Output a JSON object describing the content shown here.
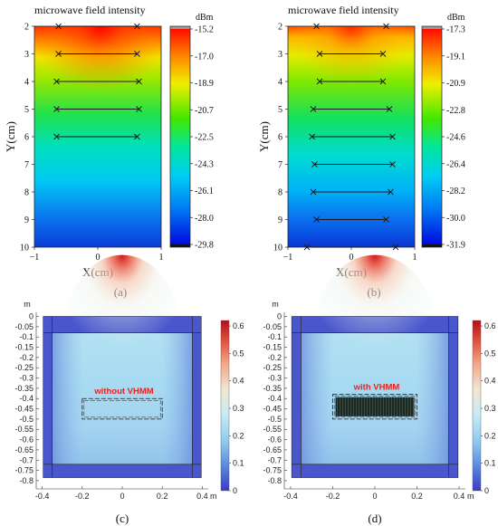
{
  "chart_data": [
    {
      "panel": "a",
      "type": "heatmap",
      "title": "microwave field intensity",
      "xlabel": "X(cm)",
      "ylabel": "Y(cm)",
      "caption": "(a)",
      "xlim": [
        -1,
        1
      ],
      "ylim": [
        2,
        10
      ],
      "x_ticks": [
        "−1",
        "0",
        "1"
      ],
      "y_ticks": [
        "2",
        "3",
        "4",
        "5",
        "6",
        "7",
        "8",
        "9",
        "10"
      ],
      "colorbar": {
        "unit": "dBm",
        "range": [
          -29.8,
          -15.2
        ],
        "ticks": [
          "-15.2",
          "-17.0",
          "-18.9",
          "-20.7",
          "-22.5",
          "-24.3",
          "-26.1",
          "-28.0",
          "-29.8"
        ]
      },
      "measurement_lines": [
        {
          "y": 2,
          "x": [
            -0.62,
            0.62
          ]
        },
        {
          "y": 3,
          "x": [
            -0.62,
            0.62
          ]
        },
        {
          "y": 4,
          "x": [
            -0.65,
            0.65
          ]
        },
        {
          "y": 5,
          "x": [
            -0.65,
            0.65
          ]
        },
        {
          "y": 6,
          "x": [
            -0.65,
            0.62
          ]
        }
      ]
    },
    {
      "panel": "b",
      "type": "heatmap",
      "title": "microwave field intensity",
      "xlabel": "X(cm)",
      "ylabel": "Y(cm)",
      "caption": "(b)",
      "xlim": [
        -1,
        1
      ],
      "ylim": [
        2,
        10
      ],
      "x_ticks": [
        "−1",
        "0",
        "1"
      ],
      "y_ticks": [
        "2",
        "3",
        "4",
        "5",
        "6",
        "7",
        "8",
        "9",
        "10"
      ],
      "colorbar": {
        "unit": "dBm",
        "range": [
          -31.9,
          -17.3
        ],
        "ticks": [
          "-17.3",
          "-19.1",
          "-20.9",
          "-22.8",
          "-24.6",
          "-26.4",
          "-28.2",
          "-30.0",
          "-31.9"
        ]
      },
      "measurement_lines": [
        {
          "y": 2,
          "x": [
            -0.55,
            0.55
          ]
        },
        {
          "y": 3,
          "x": [
            -0.5,
            0.5
          ]
        },
        {
          "y": 4,
          "x": [
            -0.5,
            0.5
          ]
        },
        {
          "y": 5,
          "x": [
            -0.6,
            0.6
          ]
        },
        {
          "y": 6,
          "x": [
            -0.62,
            0.65
          ]
        },
        {
          "y": 7,
          "x": [
            -0.58,
            0.65
          ]
        },
        {
          "y": 8,
          "x": [
            -0.6,
            0.62
          ]
        },
        {
          "y": 9,
          "x": [
            -0.55,
            0.55
          ]
        },
        {
          "y": 10,
          "x": [
            -0.7,
            0.7
          ]
        }
      ]
    },
    {
      "panel": "c",
      "type": "heatmap",
      "caption": "(c)",
      "annotation": "without VHMM",
      "x_unit": "m",
      "y_unit": "m",
      "xlim": [
        -0.43,
        0.43
      ],
      "ylim": [
        -0.84,
        0.02
      ],
      "x_ticks": [
        -0.4,
        -0.2,
        0,
        0.2,
        0.4
      ],
      "x_tick_labels": [
        "-0.4",
        "-0.2",
        "0",
        "0.2",
        "0.4"
      ],
      "y_ticks": [
        0,
        -0.05,
        -0.1,
        -0.15,
        -0.2,
        -0.25,
        -0.3,
        -0.35,
        -0.4,
        -0.45,
        -0.5,
        -0.55,
        -0.6,
        -0.65,
        -0.7,
        -0.75,
        -0.8
      ],
      "y_tick_labels": [
        "0",
        "-0.05",
        "-0.1",
        "-0.15",
        "-0.2",
        "-0.25",
        "-0.3",
        "-0.35",
        "-0.4",
        "-0.45",
        "-0.5",
        "-0.55",
        "-0.6",
        "-0.65",
        "-0.7",
        "-0.75",
        "-0.8"
      ],
      "colorbar": {
        "range": [
          0,
          0.62
        ],
        "ticks": [
          "0.6",
          "0.5",
          "0.4",
          "0.3",
          "0.2",
          "0.1",
          "0"
        ]
      },
      "cavity": {
        "x": [
          -0.35,
          0.35
        ],
        "y": [
          -0.72,
          -0.08
        ]
      },
      "load_box": {
        "x": [
          -0.2,
          0.2
        ],
        "y": [
          -0.5,
          -0.4
        ],
        "filled": false
      }
    },
    {
      "panel": "d",
      "type": "heatmap",
      "caption": "(d)",
      "annotation": "with VHMM",
      "x_unit": "m",
      "y_unit": "m",
      "xlim": [
        -0.43,
        0.43
      ],
      "ylim": [
        -0.84,
        0.02
      ],
      "x_ticks": [
        -0.4,
        -0.2,
        0,
        0.2,
        0.4
      ],
      "x_tick_labels": [
        "-0.4",
        "-0.2",
        "0",
        "0.2",
        "0.4"
      ],
      "y_ticks": [
        0,
        -0.05,
        -0.1,
        -0.15,
        -0.2,
        -0.25,
        -0.3,
        -0.35,
        -0.4,
        -0.45,
        -0.5,
        -0.55,
        -0.6,
        -0.65,
        -0.7,
        -0.75,
        -0.8
      ],
      "y_tick_labels": [
        "0",
        "-0.05",
        "-0.1",
        "-0.15",
        "-0.2",
        "-0.25",
        "-0.3",
        "-0.35",
        "-0.4",
        "-0.45",
        "-0.5",
        "-0.55",
        "-0.6",
        "-0.65",
        "-0.7",
        "-0.75",
        "-0.8"
      ],
      "colorbar": {
        "range": [
          0,
          0.62
        ],
        "ticks": [
          "0.6",
          "0.5",
          "0.4",
          "0.3",
          "0.2",
          "0.1",
          "0"
        ]
      },
      "cavity": {
        "x": [
          -0.35,
          0.35
        ],
        "y": [
          -0.72,
          -0.08
        ]
      },
      "load_box": {
        "x": [
          -0.2,
          0.2
        ],
        "y": [
          -0.5,
          -0.38
        ],
        "filled": true
      }
    }
  ]
}
